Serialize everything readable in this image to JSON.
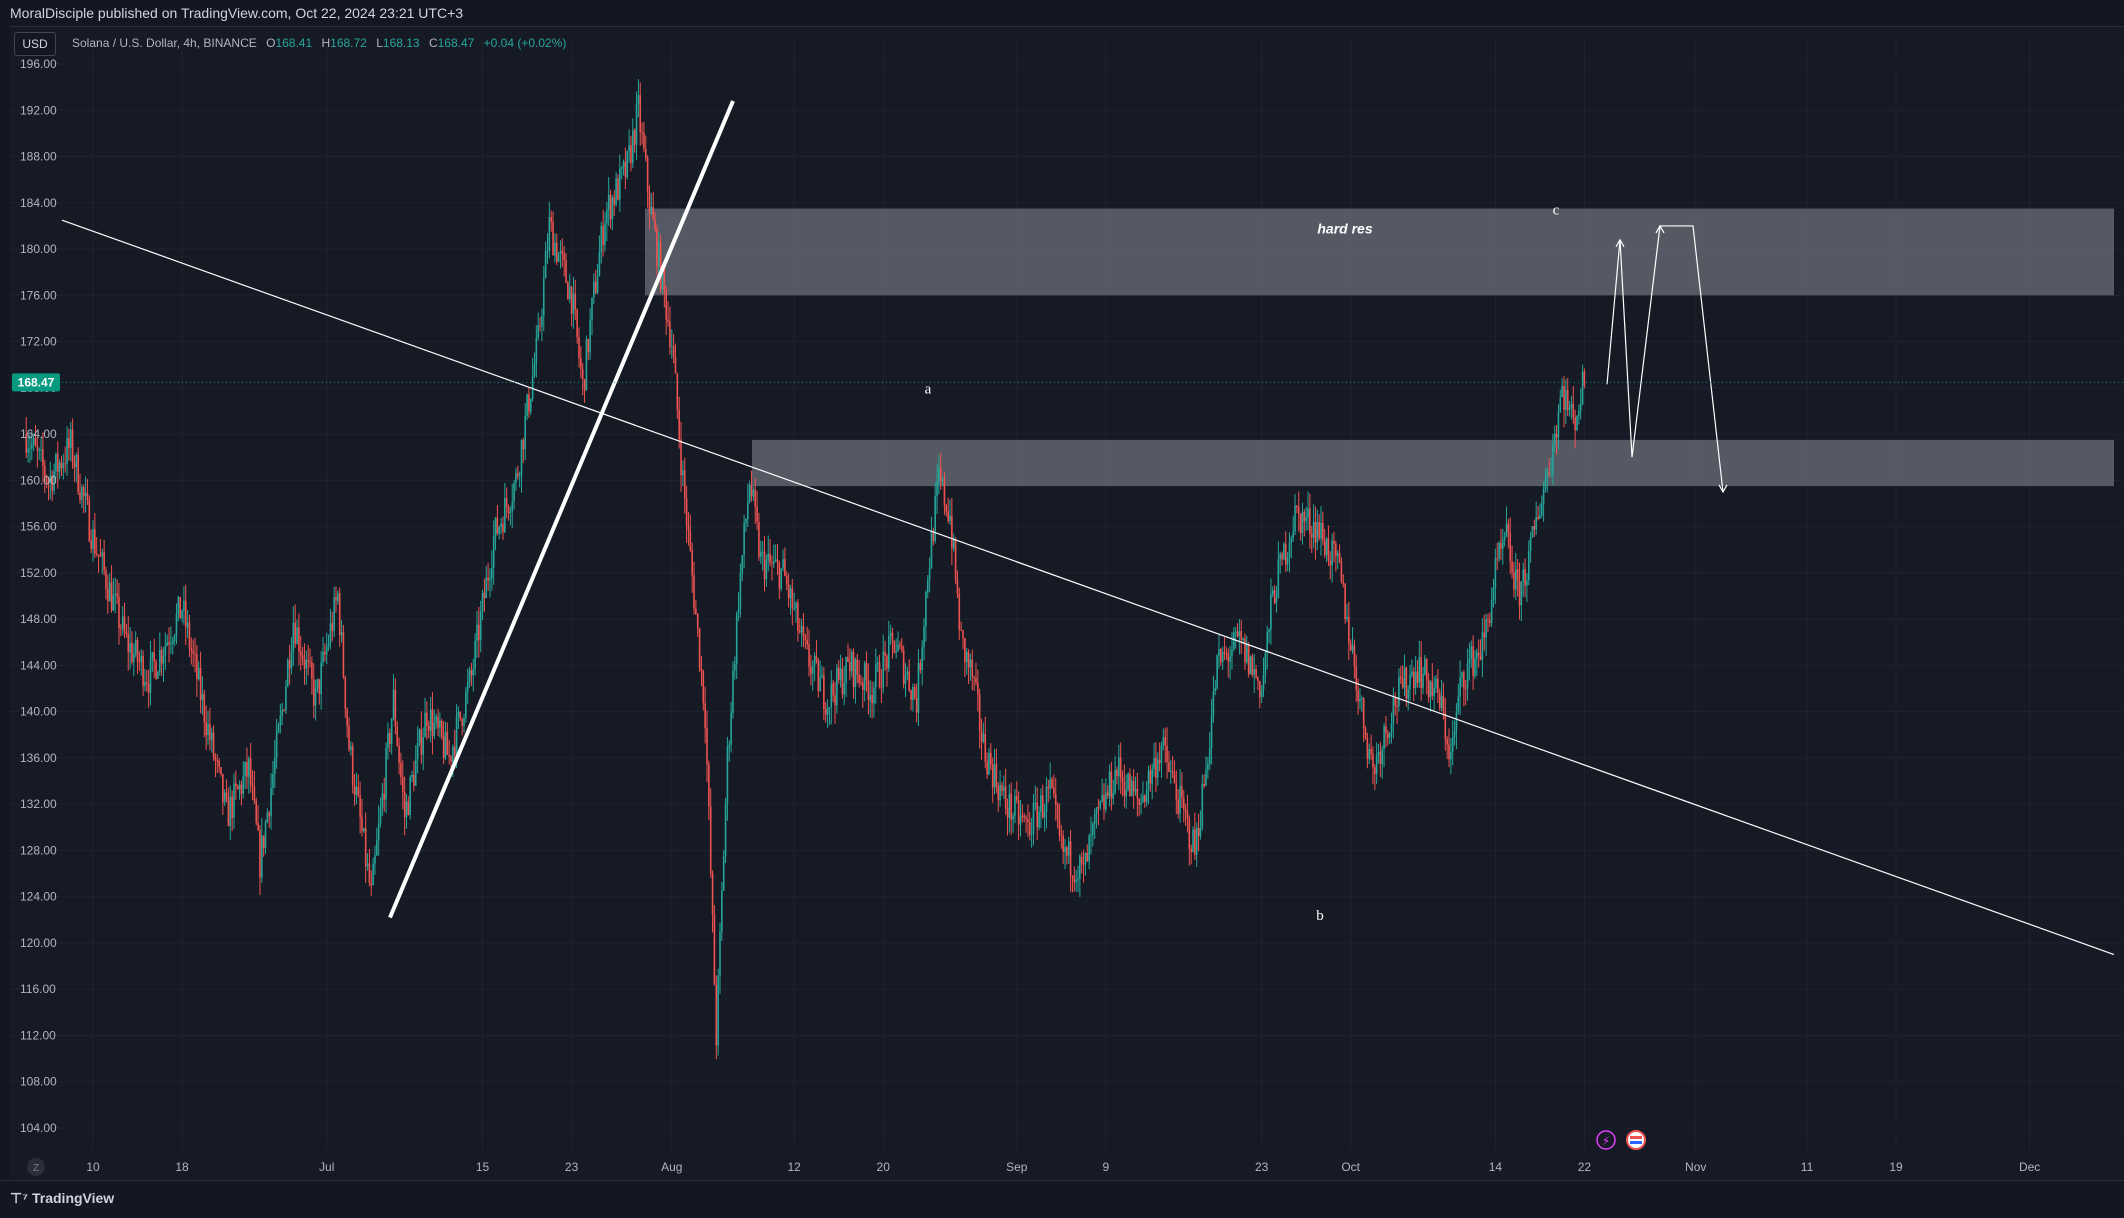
{
  "header": {
    "publisher": "MoralDisciple published on TradingView.com, Oct 22, 2024 23:21 UTC+3"
  },
  "symbol": {
    "currency_button": "USD",
    "name": "Solana / U.S. Dollar, 4h, BINANCE",
    "open_key": "O",
    "open": "168.41",
    "high_key": "H",
    "high": "168.72",
    "low_key": "L",
    "low": "168.13",
    "close_key": "C",
    "close": "168.47",
    "change": "+0.04 (+0.02%)"
  },
  "price_badge": "168.47",
  "footer": {
    "brand": "TradingView",
    "z_button": "Z"
  },
  "colors": {
    "up": "#26a69a",
    "down": "#ef5350",
    "background": "#131722",
    "zone": "#787b86",
    "badge": "#089981"
  },
  "chart_data": {
    "type": "candlestick",
    "title": "Solana / U.S. Dollar, 4h, BINANCE",
    "ylim": [
      102,
      199
    ],
    "y_ticks": [
      "196.00",
      "192.00",
      "188.00",
      "184.00",
      "180.00",
      "176.00",
      "172.00",
      "168.00",
      "164.00",
      "160.00",
      "156.00",
      "152.00",
      "148.00",
      "144.00",
      "140.00",
      "136.00",
      "132.00",
      "128.00",
      "124.00",
      "120.00",
      "116.00",
      "112.00",
      "108.00",
      "104.00"
    ],
    "x_ticks": [
      "10",
      "18",
      "Jul",
      "15",
      "23",
      "Aug",
      "12",
      "20",
      "Sep",
      "9",
      "23",
      "Oct",
      "14",
      "22",
      "Nov",
      "11",
      "19",
      "Dec"
    ],
    "current_price": 168.47,
    "zones": [
      {
        "label": "hard res",
        "from": 176.0,
        "to": 183.5
      },
      {
        "label": "",
        "from": 159.5,
        "to": 163.5
      }
    ],
    "annotations": [
      "a",
      "b",
      "c"
    ],
    "close_path": [
      {
        "d": "Jun 4",
        "v": 164
      },
      {
        "d": "Jun 6",
        "v": 160
      },
      {
        "d": "Jun 8",
        "v": 163
      },
      {
        "d": "Jun 10",
        "v": 155
      },
      {
        "d": "Jun 13",
        "v": 146
      },
      {
        "d": "Jun 15",
        "v": 143
      },
      {
        "d": "Jun 18",
        "v": 149
      },
      {
        "d": "Jun 20",
        "v": 140
      },
      {
        "d": "Jun 22",
        "v": 131
      },
      {
        "d": "Jun 24",
        "v": 135
      },
      {
        "d": "Jun 25",
        "v": 127
      },
      {
        "d": "Jun 27",
        "v": 140
      },
      {
        "d": "Jun 28",
        "v": 148
      },
      {
        "d": "Jun 30",
        "v": 141
      },
      {
        "d": "Jul 2",
        "v": 150
      },
      {
        "d": "Jul 3",
        "v": 137
      },
      {
        "d": "Jul 5",
        "v": 124
      },
      {
        "d": "Jul 7",
        "v": 141
      },
      {
        "d": "Jul 8",
        "v": 131
      },
      {
        "d": "Jul 10",
        "v": 140
      },
      {
        "d": "Jul 12",
        "v": 136
      },
      {
        "d": "Jul 14",
        "v": 143
      },
      {
        "d": "Jul 16",
        "v": 155
      },
      {
        "d": "Jul 18",
        "v": 160
      },
      {
        "d": "Jul 20",
        "v": 172
      },
      {
        "d": "Jul 21",
        "v": 182
      },
      {
        "d": "Jul 23",
        "v": 176
      },
      {
        "d": "Jul 24",
        "v": 168
      },
      {
        "d": "Jul 25",
        "v": 176
      },
      {
        "d": "Jul 26",
        "v": 183
      },
      {
        "d": "Jul 28",
        "v": 187
      },
      {
        "d": "Jul 29",
        "v": 192
      },
      {
        "d": "Jul 30",
        "v": 184
      },
      {
        "d": "Aug 1",
        "v": 172
      },
      {
        "d": "Aug 2",
        "v": 160
      },
      {
        "d": "Aug 3",
        "v": 150
      },
      {
        "d": "Aug 4",
        "v": 140
      },
      {
        "d": "Aug 5",
        "v": 112
      },
      {
        "d": "Aug 6",
        "v": 136
      },
      {
        "d": "Aug 7",
        "v": 150
      },
      {
        "d": "Aug 8",
        "v": 160
      },
      {
        "d": "Aug 9",
        "v": 153
      },
      {
        "d": "Aug 11",
        "v": 152
      },
      {
        "d": "Aug 13",
        "v": 145
      },
      {
        "d": "Aug 15",
        "v": 141
      },
      {
        "d": "Aug 17",
        "v": 144
      },
      {
        "d": "Aug 19",
        "v": 142
      },
      {
        "d": "Aug 21",
        "v": 146
      },
      {
        "d": "Aug 23",
        "v": 141
      },
      {
        "d": "Aug 24",
        "v": 152
      },
      {
        "d": "Aug 25",
        "v": 160
      },
      {
        "d": "Aug 26",
        "v": 157
      },
      {
        "d": "Aug 27",
        "v": 146
      },
      {
        "d": "Aug 28",
        "v": 143
      },
      {
        "d": "Aug 29",
        "v": 137
      },
      {
        "d": "Aug 31",
        "v": 132
      },
      {
        "d": "Sep 2",
        "v": 130
      },
      {
        "d": "Sep 4",
        "v": 133
      },
      {
        "d": "Sep 5",
        "v": 128
      },
      {
        "d": "Sep 7",
        "v": 126
      },
      {
        "d": "Sep 8",
        "v": 130
      },
      {
        "d": "Sep 10",
        "v": 135
      },
      {
        "d": "Sep 12",
        "v": 132
      },
      {
        "d": "Sep 14",
        "v": 137
      },
      {
        "d": "Sep 16",
        "v": 131
      },
      {
        "d": "Sep 17",
        "v": 128
      },
      {
        "d": "Sep 18",
        "v": 135
      },
      {
        "d": "Sep 19",
        "v": 144
      },
      {
        "d": "Sep 21",
        "v": 146
      },
      {
        "d": "Sep 23",
        "v": 142
      },
      {
        "d": "Sep 24",
        "v": 150
      },
      {
        "d": "Sep 26",
        "v": 157
      },
      {
        "d": "Sep 28",
        "v": 156
      },
      {
        "d": "Sep 30",
        "v": 152
      },
      {
        "d": "Oct 1",
        "v": 146
      },
      {
        "d": "Oct 2",
        "v": 140
      },
      {
        "d": "Oct 3",
        "v": 135
      },
      {
        "d": "Oct 5",
        "v": 141
      },
      {
        "d": "Oct 7",
        "v": 144
      },
      {
        "d": "Oct 9",
        "v": 141
      },
      {
        "d": "Oct 10",
        "v": 136
      },
      {
        "d": "Oct 11",
        "v": 143
      },
      {
        "d": "Oct 13",
        "v": 146
      },
      {
        "d": "Oct 14",
        "v": 152
      },
      {
        "d": "Oct 15",
        "v": 155
      },
      {
        "d": "Oct 16",
        "v": 150
      },
      {
        "d": "Oct 17",
        "v": 153
      },
      {
        "d": "Oct 18",
        "v": 158
      },
      {
        "d": "Oct 19",
        "v": 162
      },
      {
        "d": "Oct 20",
        "v": 168
      },
      {
        "d": "Oct 21",
        "v": 165
      },
      {
        "d": "Oct 22",
        "v": 168.47
      }
    ]
  }
}
